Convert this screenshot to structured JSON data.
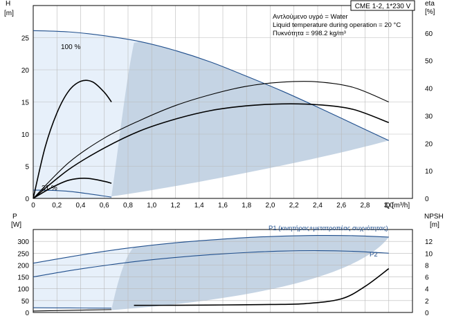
{
  "chart_data": [
    {
      "type": "line",
      "panel": "head-efficiency",
      "title_box": "CME 1-2, 1*230 V",
      "annotations": [
        "Αντλούμενο υγρό = Water",
        "Liquid temperature during operation = 20 °C",
        "Πυκνότητα = 998.2 kg/m³"
      ],
      "xlabel": "Q [m³/h]",
      "x_ticks": [
        "0",
        "0,2",
        "0,4",
        "0,6",
        "0,8",
        "1,0",
        "1,2",
        "1,4",
        "1,6",
        "1,8",
        "2,0",
        "2,2",
        "2,4",
        "2,6",
        "2,8",
        "3,0"
      ],
      "xlim": [
        0,
        3.2
      ],
      "ylabel_left": "H\n[m]",
      "ylabel_left_name": "H",
      "ylabel_left_unit": "[m]",
      "y_left_ticks": [
        "0",
        "5",
        "10",
        "15",
        "20",
        "25"
      ],
      "ylim_left": [
        0,
        30
      ],
      "ylabel_right": "eta\n[%]",
      "ylabel_right_name": "eta",
      "ylabel_right_unit": "[%]",
      "y_right_ticks": [
        "0",
        "10",
        "20",
        "30",
        "40",
        "50",
        "60"
      ],
      "ylim_right": [
        0,
        70
      ],
      "grid": true,
      "curve_labels": [
        "100 %",
        "21 %"
      ],
      "series": [
        {
          "axis": "left",
          "color": "#1f4e8c",
          "x": [
            0,
            0.3,
            0.6,
            0.9,
            1.2,
            1.5,
            1.8,
            2.1,
            2.4,
            2.7,
            3.0
          ],
          "values": [
            26.1,
            25.9,
            25.3,
            24.4,
            23.0,
            21.2,
            19.0,
            16.7,
            14.2,
            11.6,
            9.0
          ]
        },
        {
          "axis": "left",
          "color": "#1f4e8c",
          "x": [
            0,
            0.3,
            0.66
          ],
          "values": [
            1.3,
            1.1,
            0.2
          ]
        },
        {
          "axis": "right",
          "color": "#000000",
          "x": [
            0,
            0.3,
            0.6,
            0.9,
            1.2,
            1.5,
            1.8,
            2.1,
            2.4,
            2.7,
            3.0
          ],
          "values": [
            0,
            10.5,
            18.3,
            24.5,
            28.8,
            31.9,
            33.6,
            34.3,
            34.0,
            32.3,
            27.5
          ]
        },
        {
          "axis": "right",
          "color": "#000000",
          "x": [
            0,
            0.3,
            0.6,
            0.9,
            1.2,
            1.5,
            1.8,
            2.1,
            2.4,
            2.7,
            3.0
          ],
          "values": [
            0,
            13.0,
            21.9,
            28.3,
            33.7,
            37.7,
            40.7,
            42.2,
            42.3,
            40.3,
            35.0
          ]
        },
        {
          "axis": "right",
          "color": "#000000",
          "x": [
            0,
            0.1,
            0.2,
            0.3,
            0.4,
            0.5,
            0.6,
            0.66
          ],
          "values": [
            0,
            18.5,
            31.0,
            39.0,
            42.5,
            42.3,
            38.5,
            35.0
          ]
        },
        {
          "axis": "right",
          "color": "#000000",
          "x": [
            0,
            0.15,
            0.3,
            0.45,
            0.6,
            0.66
          ],
          "values": [
            0,
            3.8,
            6.6,
            7.3,
            6.2,
            5.5
          ]
        }
      ]
    },
    {
      "type": "line",
      "panel": "power-npsh",
      "xlabel": "",
      "xlim": [
        0,
        3.2
      ],
      "ylabel_left": "P\n[W]",
      "ylabel_left_name": "P",
      "ylabel_left_unit": "[W]",
      "y_left_ticks": [
        "0",
        "50",
        "100",
        "150",
        "200",
        "250",
        "300"
      ],
      "ylim_left": [
        0,
        350
      ],
      "ylabel_right": "NPSH\n[m]",
      "ylabel_right_name": "NPSH",
      "ylabel_right_unit": "[m]",
      "y_right_ticks": [
        "0",
        "2",
        "4",
        "6",
        "8",
        "10",
        "12"
      ],
      "ylim_right": [
        0,
        14
      ],
      "grid": true,
      "series": [
        {
          "name": "P1 (κινητήρας+μετατροπέας συχνότητας)",
          "axis": "left",
          "color": "#1f4e8c",
          "x": [
            0,
            0.3,
            0.6,
            0.9,
            1.2,
            1.5,
            1.8,
            2.1,
            2.4,
            2.7,
            3.0
          ],
          "values": [
            208,
            234,
            258,
            278,
            294,
            306,
            316,
            322,
            325,
            324,
            318
          ]
        },
        {
          "name": "P2",
          "axis": "left",
          "color": "#1f4e8c",
          "x": [
            0,
            0.3,
            0.6,
            0.9,
            1.2,
            1.5,
            1.8,
            2.1,
            2.4,
            2.7,
            3.0
          ],
          "values": [
            150,
            176,
            198,
            217,
            232,
            244,
            253,
            259,
            261,
            258,
            250
          ]
        },
        {
          "axis": "left",
          "color": "#1f4e8c",
          "x": [
            0,
            0.3,
            0.66
          ],
          "values": [
            20,
            19,
            18
          ]
        },
        {
          "axis": "left",
          "color": "#000000",
          "x": [
            0,
            0.3,
            0.66
          ],
          "values": [
            6,
            9,
            12
          ]
        },
        {
          "axis": "right",
          "color": "#000000",
          "x": [
            0.85,
            1.2,
            1.6,
            2.0,
            2.3,
            2.6,
            2.8,
            3.0
          ],
          "values": [
            1.2,
            1.22,
            1.27,
            1.35,
            1.5,
            2.3,
            4.4,
            7.4
          ]
        }
      ]
    }
  ]
}
